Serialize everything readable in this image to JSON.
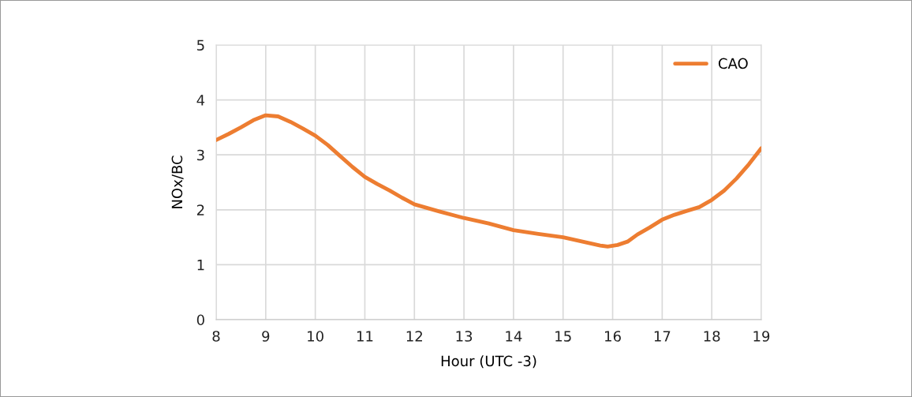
{
  "chart_data": {
    "type": "line",
    "xlabel": "Hour (UTC -3)",
    "ylabel": "NOx/BC",
    "series": [
      {
        "name": "CAO",
        "color": "#ed7d31",
        "x": [
          8,
          8.25,
          8.5,
          8.75,
          9,
          9.25,
          9.5,
          9.75,
          10,
          10.25,
          10.5,
          10.75,
          11,
          11.25,
          11.5,
          11.75,
          12,
          12.5,
          13,
          13.5,
          14,
          14.5,
          15,
          15.25,
          15.5,
          15.75,
          15.9,
          16.1,
          16.3,
          16.5,
          16.75,
          17,
          17.25,
          17.5,
          17.75,
          18,
          18.25,
          18.5,
          18.75,
          19
        ],
        "values": [
          3.27,
          3.38,
          3.5,
          3.63,
          3.72,
          3.7,
          3.6,
          3.48,
          3.35,
          3.18,
          2.98,
          2.78,
          2.6,
          2.47,
          2.35,
          2.22,
          2.1,
          1.97,
          1.85,
          1.75,
          1.63,
          1.56,
          1.5,
          1.45,
          1.4,
          1.35,
          1.33,
          1.36,
          1.42,
          1.55,
          1.68,
          1.82,
          1.91,
          1.98,
          2.05,
          2.18,
          2.35,
          2.57,
          2.83,
          3.12
        ]
      }
    ],
    "xlim": [
      8,
      19
    ],
    "xticks": [
      8,
      9,
      10,
      11,
      12,
      13,
      14,
      15,
      16,
      17,
      18,
      19
    ],
    "ylim": [
      0,
      5
    ],
    "yticks": [
      0,
      1,
      2,
      3,
      4,
      5
    ],
    "grid": true,
    "legend": "top right",
    "marker": "none",
    "line_style": "solid"
  }
}
